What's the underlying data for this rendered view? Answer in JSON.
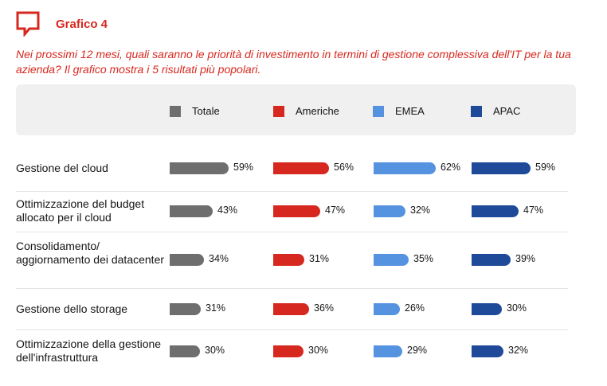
{
  "figure": {
    "title": "Grafico 4",
    "subtitle": "Nei prossimi 12 mesi, quali saranno le priorità di investimento in termini di gestione complessiva dell'IT per la tua azienda? Il grafico mostra i 5 risultati più popolari.",
    "icon": "chat-bubble-icon"
  },
  "colors": {
    "accent": "#d7281f",
    "Totale": "#6e6e6e",
    "Americhe": "#d7281f",
    "EMEA": "#5593e0",
    "APAC": "#1f4a99",
    "legend_bg": "#f0f0f0"
  },
  "chart_data": {
    "type": "bar",
    "orientation": "horizontal",
    "unit": "%",
    "categories": [
      "Gestione del cloud",
      "Ottimizzazione del budget allocato per il cloud",
      "Consolidamento/ aggiornamento dei datacenter",
      "Gestione dello storage",
      "Ottimizzazione della gestione dell'infrastruttura"
    ],
    "series": [
      {
        "name": "Totale",
        "values": [
          59,
          43,
          34,
          31,
          30
        ]
      },
      {
        "name": "Americhe",
        "values": [
          56,
          47,
          31,
          36,
          30
        ]
      },
      {
        "name": "EMEA",
        "values": [
          62,
          32,
          35,
          26,
          29
        ]
      },
      {
        "name": "APAC",
        "values": [
          59,
          47,
          39,
          30,
          32
        ]
      }
    ],
    "legend_position": "top"
  }
}
